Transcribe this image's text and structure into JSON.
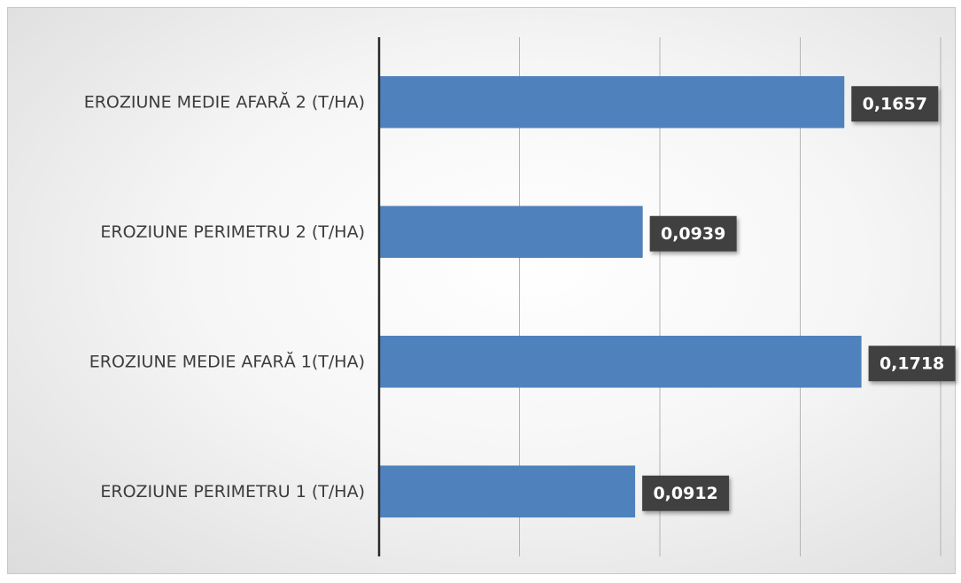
{
  "chart_data": {
    "type": "bar",
    "orientation": "horizontal",
    "categories": [
      "EROZIUNE MEDIE AFARĂ 2 (T/HA)",
      "EROZIUNE PERIMETRU 2 (T/HA)",
      "EROZIUNE MEDIE AFARĂ 1(T/HA)",
      "EROZIUNE PERIMETRU 1 (T/HA)"
    ],
    "values": [
      0.1657,
      0.0939,
      0.1718,
      0.0912
    ],
    "data_labels": [
      "0,1657",
      "0,0939",
      "0,1718",
      "0,0912"
    ],
    "xlim": [
      0,
      0.2
    ],
    "grid": true,
    "bar_color": "#4f81bd",
    "label_box_color": "#404040",
    "title": "",
    "xlabel": "",
    "ylabel": ""
  }
}
